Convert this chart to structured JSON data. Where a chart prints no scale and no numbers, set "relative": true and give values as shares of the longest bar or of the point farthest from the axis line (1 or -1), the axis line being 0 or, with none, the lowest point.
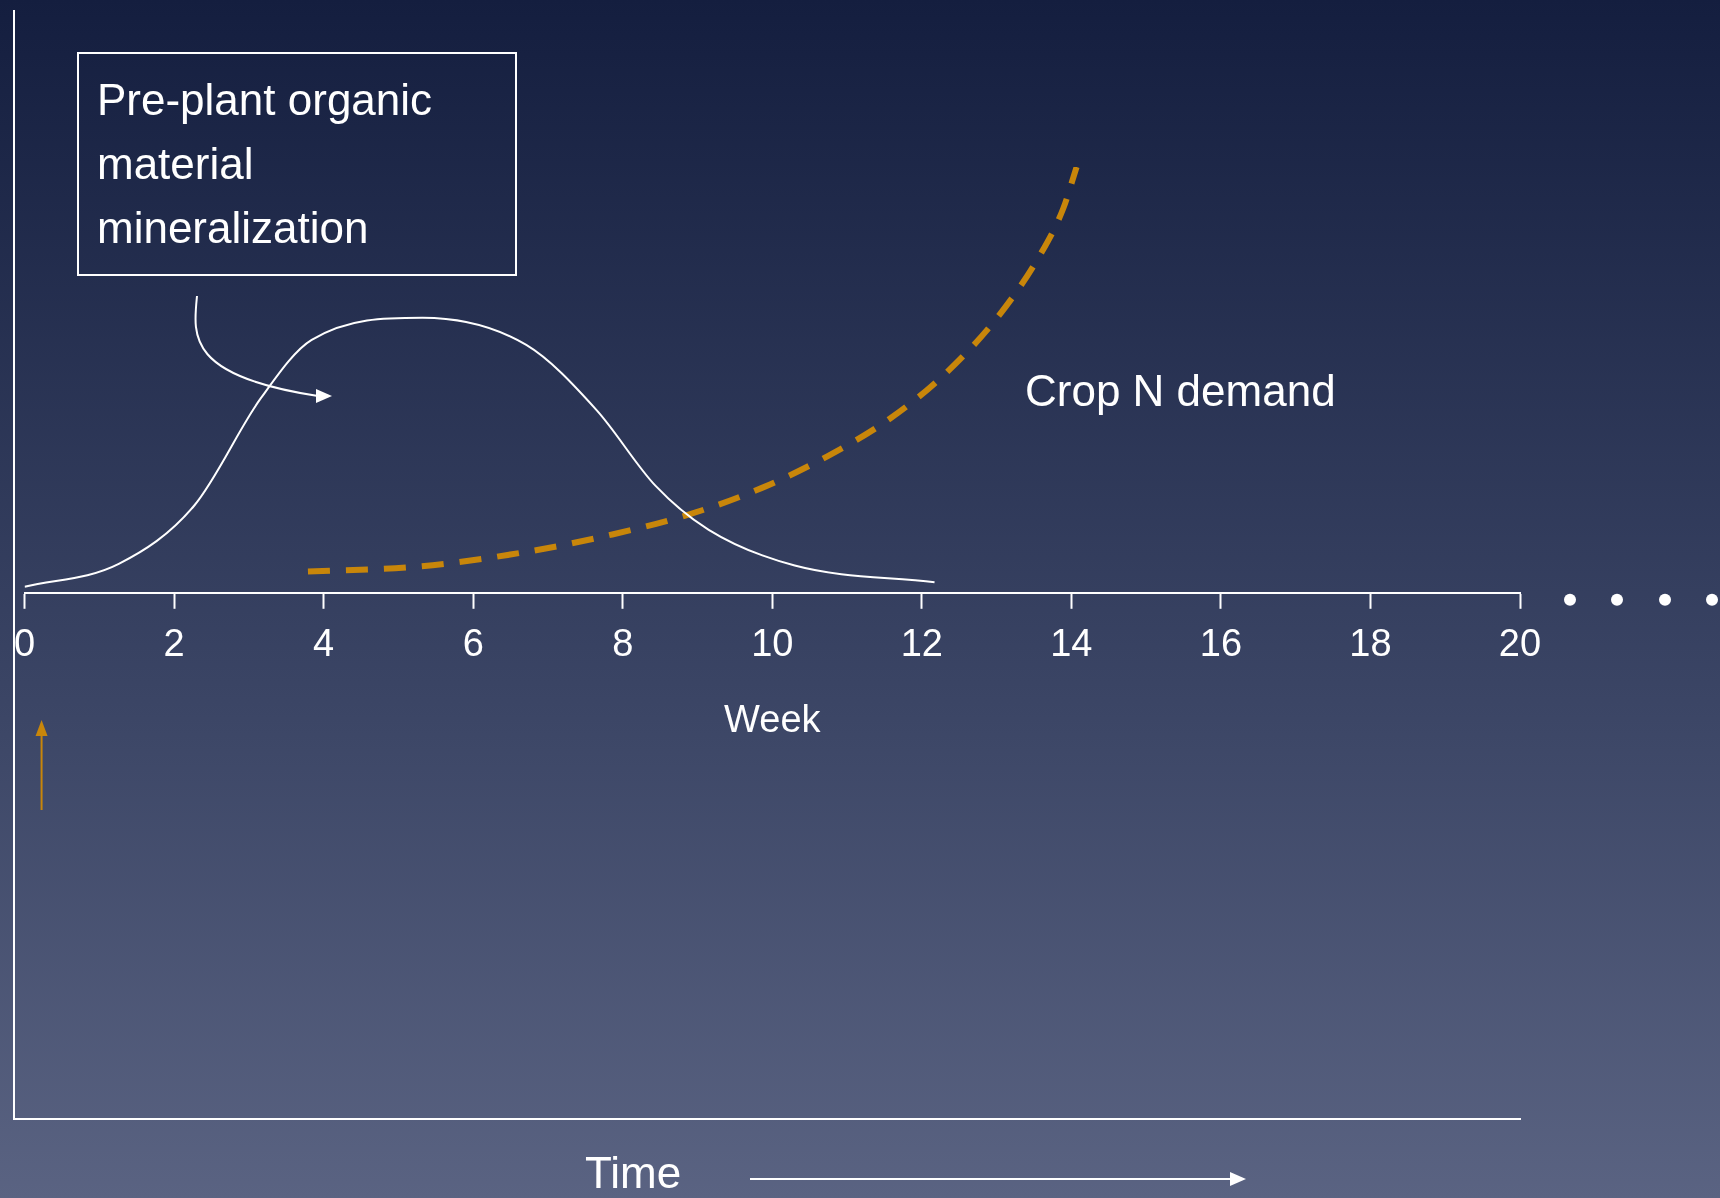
{
  "chart_data": {
    "type": "line",
    "relative": true,
    "xlabel": "Week",
    "xlim": [
      0,
      20
    ],
    "xticks": [
      0,
      2,
      4,
      6,
      8,
      10,
      12,
      14,
      16,
      18,
      20
    ],
    "annotations": [
      "Pre-plant organic material mineralization",
      "Time"
    ],
    "series": [
      {
        "color": "#ffffff",
        "line_style": "solid",
        "x": [
          0,
          1.26,
          2.27,
          3.16,
          3.84,
          5.32,
          6.71,
          7.65,
          8.44,
          9.15,
          10.3,
          12.17
        ],
        "values": [
          0.014,
          0.068,
          0.205,
          0.457,
          0.594,
          0.646,
          0.582,
          0.429,
          0.251,
          0.148,
          0.064,
          0.025
        ]
      },
      {
        "name": "Crop N demand",
        "color": "#c8860a",
        "line_style": "dashed",
        "x": [
          3.79,
          5.28,
          6.71,
          7.86,
          8.87,
          9.87,
          10.73,
          11.59,
          12.31,
          13.03,
          13.6,
          13.89,
          14.07
        ],
        "values": [
          0.05,
          0.062,
          0.096,
          0.137,
          0.183,
          0.247,
          0.32,
          0.411,
          0.514,
          0.651,
          0.799,
          0.902,
          1
        ]
      }
    ]
  }
}
